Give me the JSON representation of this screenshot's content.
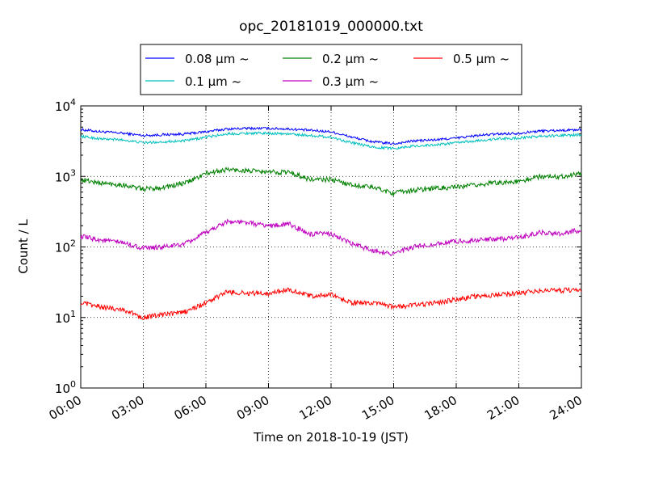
{
  "chart_data": {
    "type": "line",
    "title": "opc_20181019_000000.txt",
    "xlabel": "Time on 2018-10-19 (JST)",
    "ylabel": "Count / L",
    "y_scale": "log",
    "ylim": [
      1,
      10000
    ],
    "y_ticks": [
      {
        "base": "10",
        "exp": "0",
        "value": 1
      },
      {
        "base": "10",
        "exp": "1",
        "value": 10
      },
      {
        "base": "10",
        "exp": "2",
        "value": 100
      },
      {
        "base": "10",
        "exp": "3",
        "value": 1000
      },
      {
        "base": "10",
        "exp": "4",
        "value": 10000
      }
    ],
    "xlim": [
      "00:00",
      "24:00"
    ],
    "x_ticks": [
      "00:00",
      "03:00",
      "06:00",
      "09:00",
      "12:00",
      "15:00",
      "18:00",
      "21:00",
      "24:00"
    ],
    "grid": true,
    "legend_position": "top-center",
    "legend": [
      {
        "label": "0.08 μm ~",
        "series_index": 0
      },
      {
        "label": "0.2 μm ~",
        "series_index": 2
      },
      {
        "label": "0.5 μm ~",
        "series_index": 4
      },
      {
        "label": "0.1 μm ~",
        "series_index": 1
      },
      {
        "label": "0.3 μm ~",
        "series_index": 3
      }
    ],
    "series": [
      {
        "name": "0.08 μm ~",
        "color": "#0000ff",
        "x": [
          "00:00",
          "01:00",
          "02:00",
          "03:00",
          "04:00",
          "05:00",
          "06:00",
          "07:00",
          "08:00",
          "09:00",
          "10:00",
          "11:00",
          "12:00",
          "13:00",
          "14:00",
          "15:00",
          "16:00",
          "17:00",
          "18:00",
          "19:00",
          "20:00",
          "21:00",
          "22:00",
          "23:00",
          "24:00"
        ],
        "values": [
          4600,
          4300,
          4100,
          3800,
          3900,
          4000,
          4300,
          4700,
          4800,
          4800,
          4700,
          4500,
          4300,
          3600,
          3100,
          2900,
          3200,
          3300,
          3500,
          3800,
          4000,
          4100,
          4400,
          4500,
          4600
        ]
      },
      {
        "name": "0.1 μm ~",
        "color": "#00bfbf",
        "x": [
          "00:00",
          "01:00",
          "02:00",
          "03:00",
          "04:00",
          "05:00",
          "06:00",
          "07:00",
          "08:00",
          "09:00",
          "10:00",
          "11:00",
          "12:00",
          "13:00",
          "14:00",
          "15:00",
          "16:00",
          "17:00",
          "18:00",
          "19:00",
          "20:00",
          "21:00",
          "22:00",
          "23:00",
          "24:00"
        ],
        "values": [
          3700,
          3400,
          3300,
          3000,
          3100,
          3200,
          3600,
          4000,
          4100,
          4100,
          4000,
          3800,
          3600,
          3000,
          2600,
          2500,
          2700,
          2800,
          3000,
          3200,
          3400,
          3500,
          3700,
          3800,
          3900
        ]
      },
      {
        "name": "0.2 μm ~",
        "color": "#008000",
        "x": [
          "00:00",
          "01:00",
          "02:00",
          "03:00",
          "04:00",
          "05:00",
          "06:00",
          "07:00",
          "08:00",
          "09:00",
          "10:00",
          "11:00",
          "12:00",
          "13:00",
          "14:00",
          "15:00",
          "16:00",
          "17:00",
          "18:00",
          "19:00",
          "20:00",
          "21:00",
          "22:00",
          "23:00",
          "24:00"
        ],
        "values": [
          900,
          800,
          760,
          660,
          700,
          800,
          1100,
          1250,
          1200,
          1150,
          1150,
          900,
          900,
          760,
          700,
          580,
          640,
          680,
          700,
          760,
          820,
          840,
          1000,
          1000,
          1100
        ]
      },
      {
        "name": "0.3 μm ~",
        "color": "#bf00bf",
        "x": [
          "00:00",
          "01:00",
          "02:00",
          "03:00",
          "04:00",
          "05:00",
          "06:00",
          "07:00",
          "08:00",
          "09:00",
          "10:00",
          "11:00",
          "12:00",
          "13:00",
          "14:00",
          "15:00",
          "16:00",
          "17:00",
          "18:00",
          "19:00",
          "20:00",
          "21:00",
          "22:00",
          "23:00",
          "24:00"
        ],
        "values": [
          140,
          125,
          115,
          95,
          100,
          110,
          160,
          230,
          220,
          200,
          210,
          150,
          155,
          110,
          90,
          80,
          100,
          110,
          120,
          125,
          130,
          135,
          160,
          155,
          175
        ]
      },
      {
        "name": "0.5 μm ~",
        "color": "#ff0000",
        "x": [
          "00:00",
          "01:00",
          "02:00",
          "03:00",
          "04:00",
          "05:00",
          "06:00",
          "07:00",
          "08:00",
          "09:00",
          "10:00",
          "11:00",
          "12:00",
          "13:00",
          "14:00",
          "15:00",
          "16:00",
          "17:00",
          "18:00",
          "19:00",
          "20:00",
          "21:00",
          "22:00",
          "23:00",
          "24:00"
        ],
        "values": [
          16,
          14,
          13,
          10,
          11,
          12,
          16,
          23,
          22,
          22,
          25,
          20,
          21,
          16,
          16,
          14,
          15,
          16,
          18,
          20,
          21,
          22,
          24,
          24,
          25
        ]
      }
    ]
  }
}
